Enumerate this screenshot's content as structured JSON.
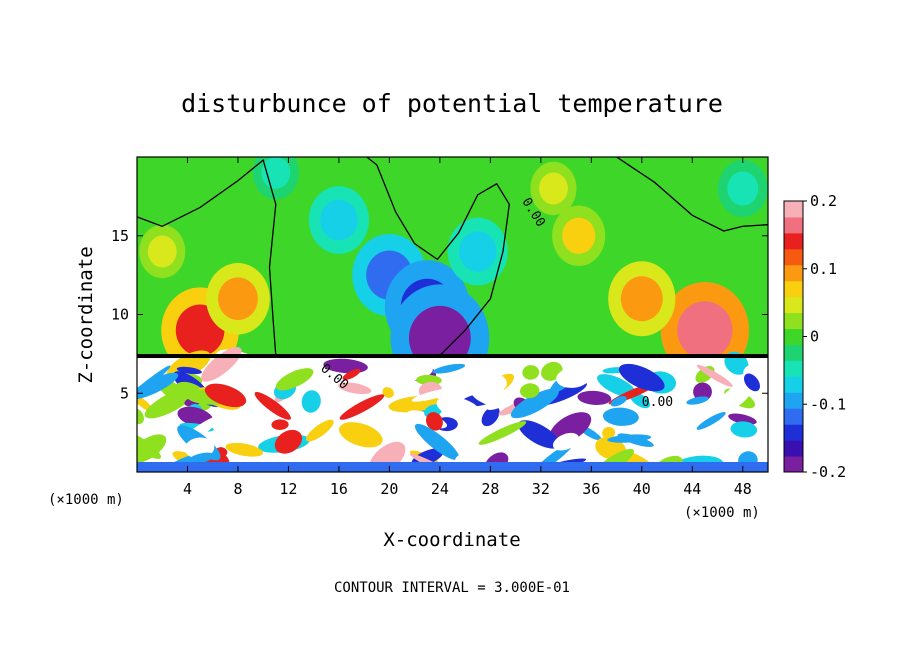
{
  "chart_data": {
    "type": "heatmap",
    "title": "disturbunce of potential temperature",
    "xlabel": "X-coordinate",
    "ylabel": "Z-coordinate",
    "x_unit": "(×1000 m)",
    "y_unit": "(×1000 m)",
    "xlim": [
      0,
      50
    ],
    "ylim": [
      0,
      20
    ],
    "x_ticks": [
      4,
      8,
      12,
      16,
      20,
      24,
      28,
      32,
      36,
      40,
      44,
      48
    ],
    "y_ticks": [
      5,
      10,
      15
    ],
    "colorbar": {
      "range": [
        -0.2,
        0.2
      ],
      "ticks": [
        "0.2",
        "0.1",
        "0",
        "-0.1",
        "-0.2"
      ],
      "tick_values": [
        0.2,
        0.1,
        0,
        -0.1,
        -0.2
      ],
      "colors": [
        "#7a1fa0",
        "#3a0fb0",
        "#1f2fd8",
        "#2f6cf0",
        "#1fa4f2",
        "#16d0e8",
        "#18e3b4",
        "#1ed470",
        "#3fd62a",
        "#8fe01e",
        "#d8e81a",
        "#f8d010",
        "#fb9a10",
        "#f55a10",
        "#e8201e",
        "#f07080",
        "#f8b0b8"
      ]
    },
    "contour_label": "0.00",
    "annotation": "CONTOUR INTERVAL = 3.000E-01",
    "features": [
      {
        "x": 20,
        "z": 12.5,
        "value": -0.12
      },
      {
        "x": 23,
        "z": 10.5,
        "value": -0.15
      },
      {
        "x": 24,
        "z": 8.5,
        "value": -0.19
      },
      {
        "x": 27,
        "z": 14,
        "value": -0.08
      },
      {
        "x": 16,
        "z": 16,
        "value": -0.08
      },
      {
        "x": 5,
        "z": 9,
        "value": 0.13
      },
      {
        "x": 8,
        "z": 11,
        "value": 0.09
      },
      {
        "x": 2,
        "z": 14,
        "value": 0.04
      },
      {
        "x": 45,
        "z": 9,
        "value": 0.16
      },
      {
        "x": 40,
        "z": 11,
        "value": 0.1
      },
      {
        "x": 35,
        "z": 15,
        "value": 0.06
      },
      {
        "x": 33,
        "z": 18,
        "value": 0.04
      },
      {
        "x": 48,
        "z": 18,
        "value": -0.05
      },
      {
        "x": 11,
        "z": 19,
        "value": -0.04
      }
    ]
  }
}
